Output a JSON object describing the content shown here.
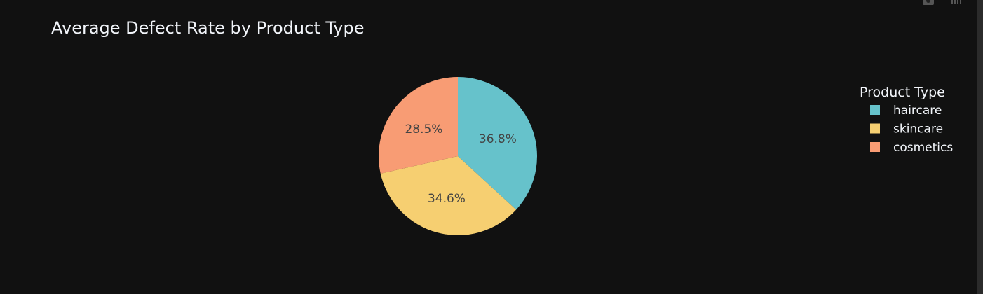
{
  "chart_data": {
    "type": "pie",
    "title": "Average Defect Rate by Product Type",
    "legend_title": "Product Type",
    "legend_position": "top-right",
    "slices": [
      {
        "label": "haircare",
        "value": 36.8,
        "display": "36.8%",
        "color": "#66c2cb"
      },
      {
        "label": "skincare",
        "value": 34.6,
        "display": "34.6%",
        "color": "#f6cf71"
      },
      {
        "label": "cosmetics",
        "value": 28.5,
        "display": "28.5%",
        "color": "#f89c74"
      }
    ]
  },
  "colors": {
    "background": "#111111",
    "text": "#f2f5fa",
    "slice_label": "#444444"
  },
  "modebar": {
    "icons": [
      "camera-icon",
      "bar-chart-icon"
    ]
  }
}
